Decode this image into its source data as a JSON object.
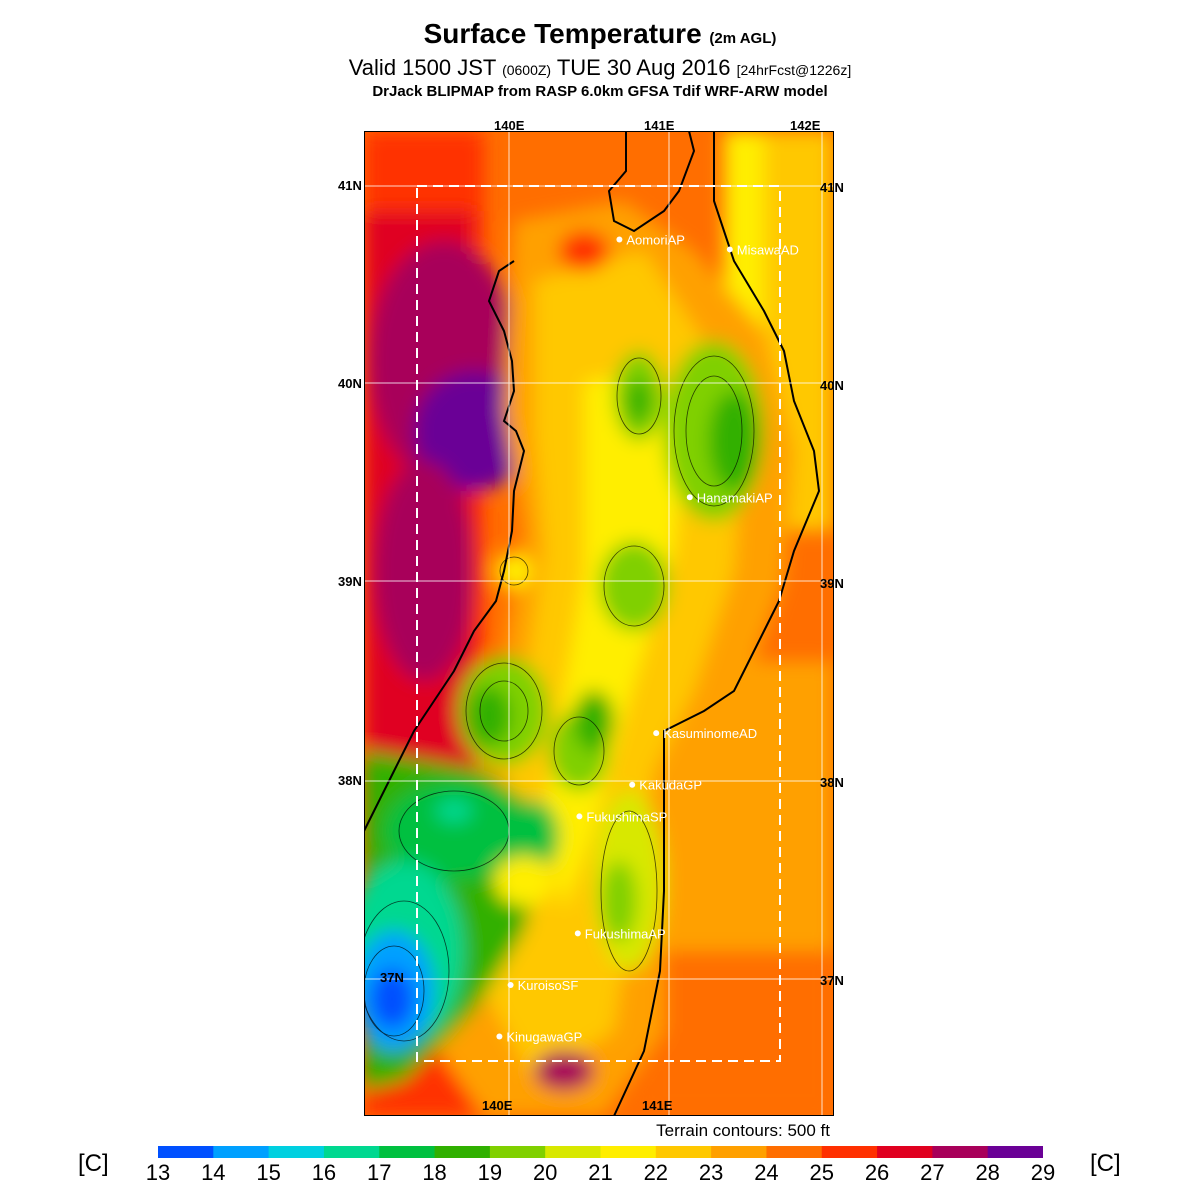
{
  "header": {
    "title": "Surface Temperature",
    "title_suffix": "(2m AGL)",
    "valid_prefix": "Valid 1500 JST",
    "valid_zulu": "(0600Z)",
    "valid_date": "TUE 30 Aug 2016",
    "forecast": "[24hrFcst@1226z]",
    "model": "DrJack BLIPMAP from RASP 6.0km GFSA Tdif WRF-ARW model"
  },
  "axes": {
    "lon_labels": [
      "140E",
      "141E",
      "142E"
    ],
    "lat_labels": [
      "41N",
      "40N",
      "39N",
      "38N",
      "37N"
    ]
  },
  "stations": [
    {
      "name": "AomoriAP",
      "lat": 40.73,
      "lon": 140.69
    },
    {
      "name": "MisawaAD",
      "lat": 40.68,
      "lon": 141.38
    },
    {
      "name": "HanamakiAP",
      "lat": 39.43,
      "lon": 141.13
    },
    {
      "name": "KasuminomeAD",
      "lat": 38.24,
      "lon": 140.92
    },
    {
      "name": "KakudaGP",
      "lat": 37.98,
      "lon": 140.77
    },
    {
      "name": "FukushimaSP",
      "lat": 37.82,
      "lon": 140.44
    },
    {
      "name": "FukushimaAP",
      "lat": 37.23,
      "lon": 140.43
    },
    {
      "name": "KuroisoSF",
      "lat": 36.97,
      "lon": 140.01
    },
    {
      "name": "KinugawaGP",
      "lat": 36.71,
      "lon": 139.94
    }
  ],
  "note": "Terrain contours: 500 ft",
  "colorbar": {
    "unit": "[C]",
    "ticks": [
      "13",
      "14",
      "15",
      "16",
      "17",
      "18",
      "19",
      "20",
      "21",
      "22",
      "23",
      "24",
      "25",
      "26",
      "27",
      "28",
      "29"
    ],
    "colors": [
      "#0000ff",
      "#0050ff",
      "#00a0ff",
      "#00d0e0",
      "#00d890",
      "#00c040",
      "#30b000",
      "#80d000",
      "#d8e800",
      "#ffee00",
      "#ffc800",
      "#ffa000",
      "#ff6e00",
      "#ff3000",
      "#e00020",
      "#a8005a",
      "#6a0096"
    ]
  }
}
